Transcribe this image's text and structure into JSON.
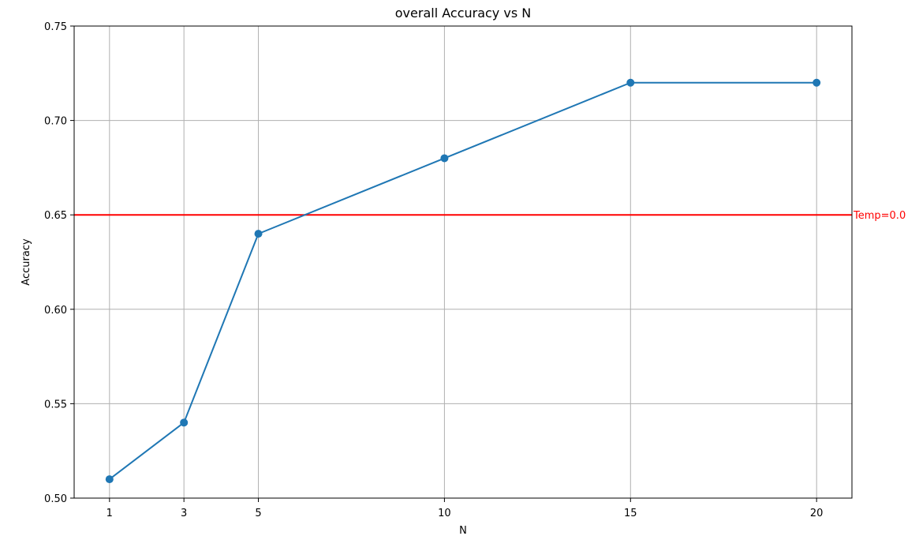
{
  "chart_data": {
    "type": "line",
    "title": "overall Accuracy vs N",
    "xlabel": "N",
    "ylabel": "Accuracy",
    "x": [
      1,
      3,
      5,
      10,
      15,
      20
    ],
    "series": [
      {
        "values": [
          0.51,
          0.54,
          0.64,
          0.68,
          0.72,
          0.72
        ],
        "color": "#1f77b4",
        "marker": "circle"
      }
    ],
    "xticks": [
      1,
      3,
      5,
      10,
      15,
      20
    ],
    "xtick_labels": [
      "1",
      "3",
      "5",
      "10",
      "15",
      "20"
    ],
    "yticks": [
      0.5,
      0.55,
      0.6,
      0.65,
      0.7,
      0.75
    ],
    "ytick_labels": [
      "0.50",
      "0.55",
      "0.60",
      "0.65",
      "0.70",
      "0.75"
    ],
    "xlim": [
      0.05,
      20.95
    ],
    "ylim": [
      0.5,
      0.75
    ],
    "grid": true,
    "reference_line": {
      "orientation": "horizontal",
      "y": 0.65,
      "label": "Temp=0.0",
      "color": "#ff0000"
    }
  }
}
